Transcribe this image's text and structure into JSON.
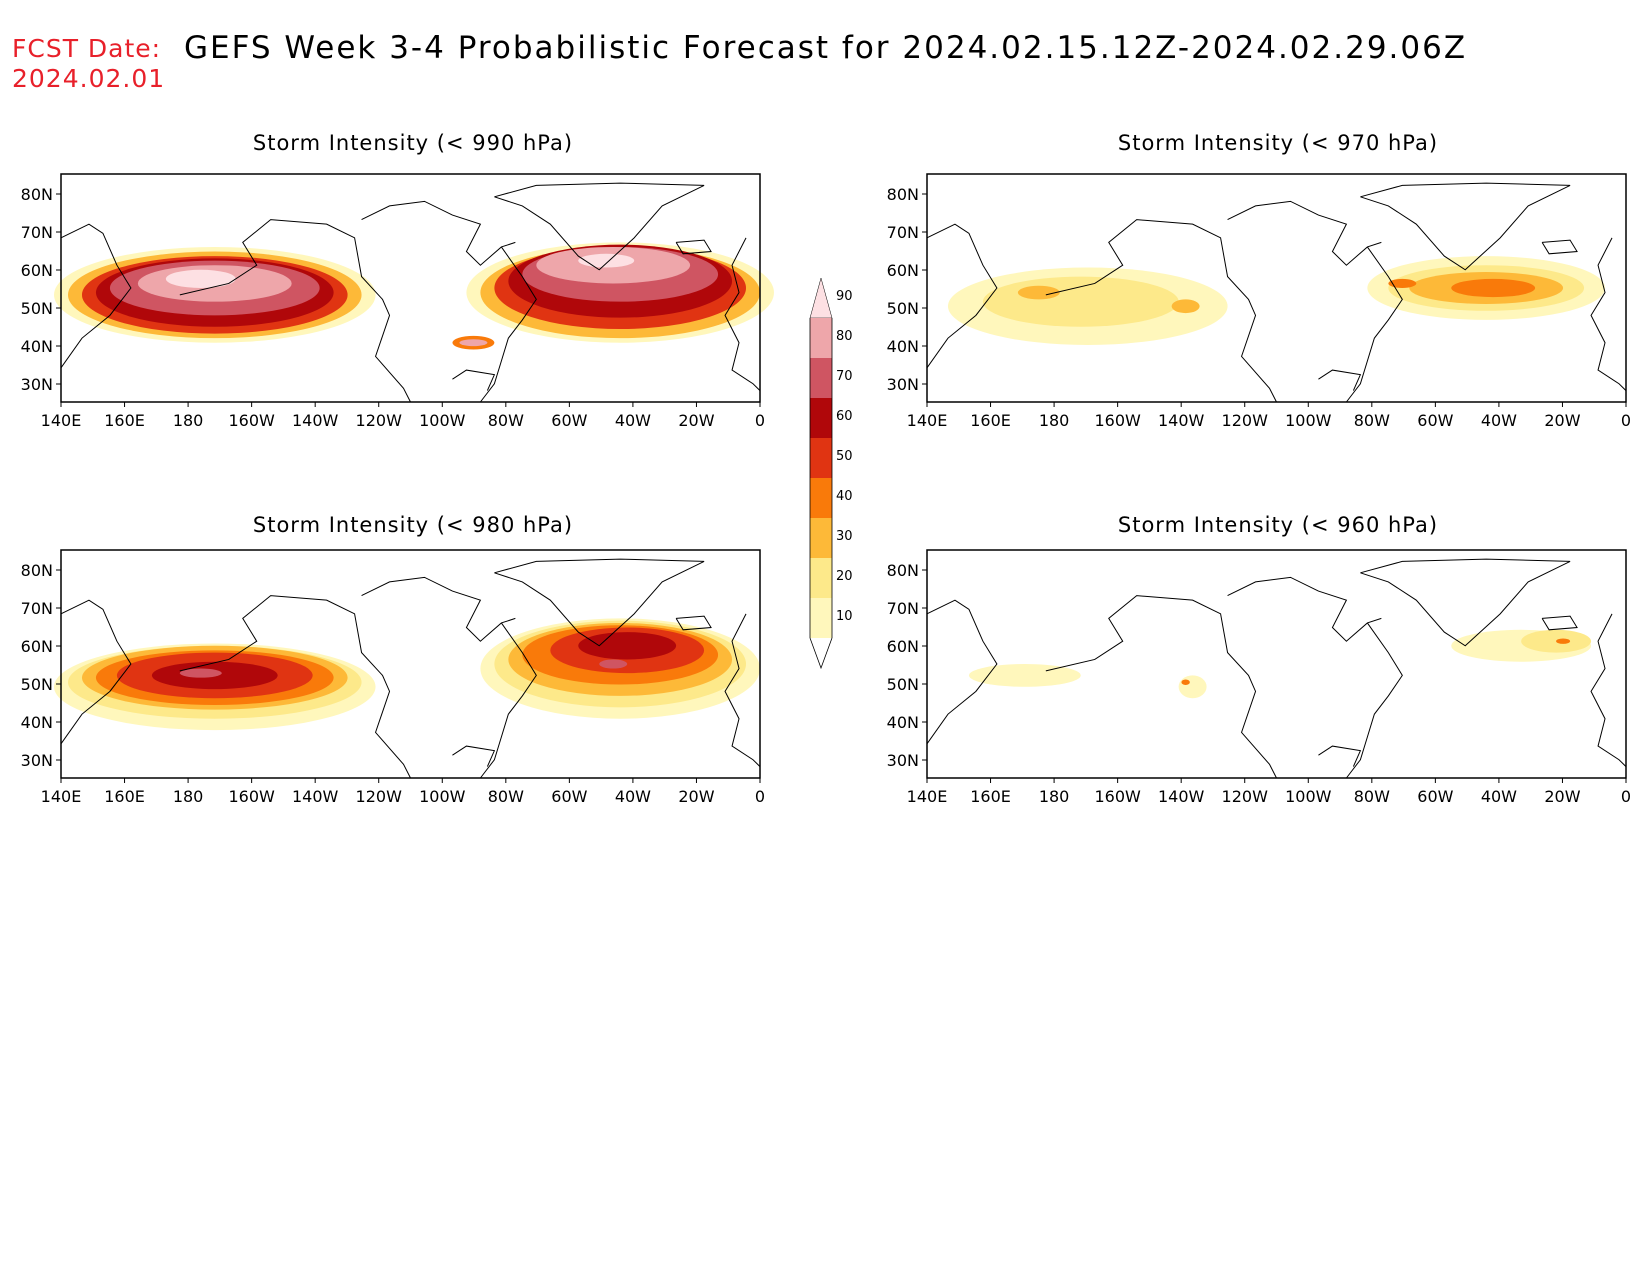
{
  "header": {
    "fcst_label": "FCST Date:",
    "fcst_date": "2024.02.01",
    "title": "GEFS Week 3-4 Probabilistic Forecast for 2024.02.15.12Z-2024.02.29.06Z"
  },
  "map_axes": {
    "lat_ticks": [
      "80N",
      "70N",
      "60N",
      "50N",
      "40N",
      "30N"
    ],
    "lon_ticks": [
      "140E",
      "160E",
      "180",
      "160W",
      "140W",
      "120W",
      "100W",
      "80W",
      "60W",
      "40W",
      "20W",
      "0"
    ]
  },
  "panels": [
    {
      "title": "Storm Intensity (< 990 hPa)",
      "level": 990
    },
    {
      "title": "Storm Intensity (< 970 hPa)",
      "level": 970
    },
    {
      "title": "Storm Intensity (< 980 hPa)",
      "level": 980
    },
    {
      "title": "Storm Intensity (< 960 hPa)",
      "level": 960
    }
  ],
  "colorbar": {
    "labels": [
      "10",
      "20",
      "30",
      "40",
      "50",
      "60",
      "70",
      "80",
      "90"
    ],
    "colors": [
      "#fff7bc",
      "#fde98a",
      "#fdb938",
      "#f97a0a",
      "#e03412",
      "#b0070a",
      "#cf5562",
      "#eea6aa",
      "#fde0e3"
    ]
  }
}
